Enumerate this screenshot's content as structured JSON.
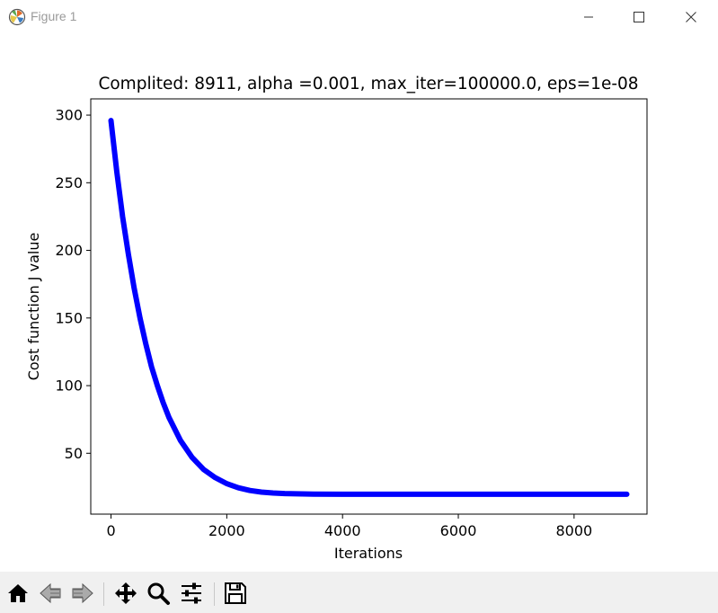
{
  "window": {
    "title": "Figure 1",
    "icon": "matplotlib-logo-icon",
    "controls": [
      "minimize-icon",
      "maximize-icon",
      "close-icon"
    ]
  },
  "toolbar": {
    "buttons": [
      {
        "name": "home",
        "icon": "home-icon"
      },
      {
        "name": "back",
        "icon": "arrow-left-icon"
      },
      {
        "name": "forward",
        "icon": "arrow-right-icon"
      },
      {
        "name": "pan",
        "icon": "move-icon"
      },
      {
        "name": "zoom",
        "icon": "magnifier-icon"
      },
      {
        "name": "configure-subplots",
        "icon": "sliders-icon"
      },
      {
        "name": "save",
        "icon": "floppy-disk-icon"
      }
    ]
  },
  "colors": {
    "line": "#0000ff",
    "toolbar_bg": "#f0f0f0"
  },
  "chart_data": {
    "type": "line",
    "title": "Complited: 8911, alpha =0.001, max_iter=100000.0, eps=1e-08",
    "xlabel": "Iterations",
    "ylabel": "Cost function J value",
    "xlim": [
      -350,
      9260
    ],
    "ylim": [
      5,
      312
    ],
    "xticks": [
      0,
      2000,
      4000,
      6000,
      8000
    ],
    "yticks": [
      50,
      100,
      150,
      200,
      250,
      300
    ],
    "xtick_labels": [
      "0",
      "2000",
      "4000",
      "6000",
      "8000"
    ],
    "ytick_labels": [
      "50",
      "100",
      "150",
      "200",
      "250",
      "300"
    ],
    "grid": false,
    "series": [
      {
        "x": [
          0,
          100,
          200,
          300,
          400,
          500,
          600,
          700,
          800,
          900,
          1000,
          1200,
          1400,
          1600,
          1800,
          2000,
          2200,
          2400,
          2600,
          2800,
          3000,
          3500,
          4000,
          5000,
          6000,
          7000,
          8000,
          8911
        ],
        "values": [
          296,
          258,
          225,
          197,
          172,
          150,
          131,
          114,
          100,
          87.5,
          76.5,
          59.5,
          47,
          38,
          32,
          27.5,
          24.5,
          22.5,
          21.3,
          20.6,
          20.2,
          19.8,
          19.7,
          19.7,
          19.7,
          19.7,
          19.7,
          19.7
        ]
      }
    ]
  }
}
